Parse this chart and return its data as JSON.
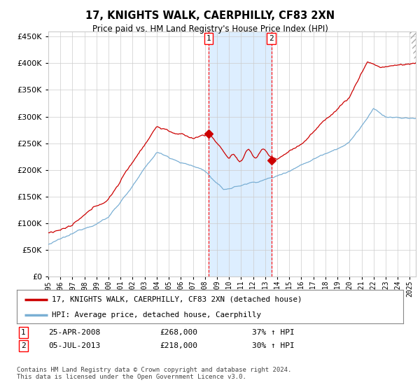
{
  "title": "17, KNIGHTS WALK, CAERPHILLY, CF83 2XN",
  "subtitle": "Price paid vs. HM Land Registry's House Price Index (HPI)",
  "xlim_start": 1995.0,
  "xlim_end": 2025.5,
  "ylim": [
    0,
    460000
  ],
  "yticks": [
    0,
    50000,
    100000,
    150000,
    200000,
    250000,
    300000,
    350000,
    400000,
    450000
  ],
  "ytick_labels": [
    "£0",
    "£50K",
    "£100K",
    "£150K",
    "£200K",
    "£250K",
    "£300K",
    "£350K",
    "£400K",
    "£450K"
  ],
  "sale1_x": 2008.32,
  "sale1_y": 268000,
  "sale1_label": "1",
  "sale1_date": "25-APR-2008",
  "sale1_price": "£268,000",
  "sale1_hpi": "37% ↑ HPI",
  "sale2_x": 2013.51,
  "sale2_y": 218000,
  "sale2_label": "2",
  "sale2_date": "05-JUL-2013",
  "sale2_price": "£218,000",
  "sale2_hpi": "30% ↑ HPI",
  "line_color_red": "#cc0000",
  "line_color_blue": "#7aafd4",
  "highlight_color": "#ddeeff",
  "grid_color": "#cccccc",
  "background_color": "#ffffff",
  "legend_label_red": "17, KNIGHTS WALK, CAERPHILLY, CF83 2XN (detached house)",
  "legend_label_blue": "HPI: Average price, detached house, Caerphilly",
  "footer": "Contains HM Land Registry data © Crown copyright and database right 2024.\nThis data is licensed under the Open Government Licence v3.0.",
  "xticks": [
    1995,
    1996,
    1997,
    1998,
    1999,
    2000,
    2001,
    2002,
    2003,
    2004,
    2005,
    2006,
    2007,
    2008,
    2009,
    2010,
    2011,
    2012,
    2013,
    2014,
    2015,
    2016,
    2017,
    2018,
    2019,
    2020,
    2021,
    2022,
    2023,
    2024,
    2025
  ]
}
